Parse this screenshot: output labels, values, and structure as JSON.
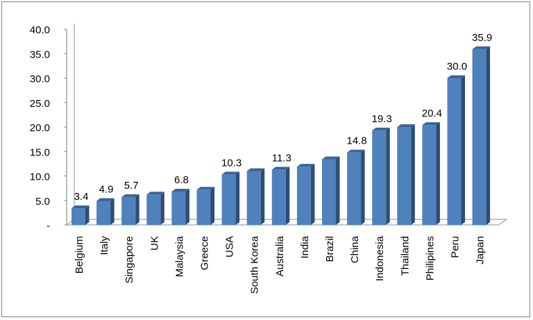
{
  "chart_data": {
    "type": "bar",
    "title": "",
    "xlabel": "",
    "ylabel": "",
    "ylim": [
      0,
      40
    ],
    "yticks": [
      "-",
      "5.0",
      "10.0",
      "15.0",
      "20.0",
      "25.0",
      "30.0",
      "35.0",
      "40.0"
    ],
    "categories": [
      "Belgium",
      "Italy",
      "Singapore",
      "UK",
      "Malaysia",
      "Greece",
      "USA",
      "South Korea",
      "Australia",
      "India",
      "Brazil",
      "China",
      "Indonesia",
      "Thailand",
      "Philipines",
      "Peru",
      "Japan"
    ],
    "values": [
      3.4,
      4.9,
      5.7,
      6.2,
      6.8,
      7.2,
      10.3,
      11.0,
      11.3,
      11.9,
      13.4,
      14.8,
      19.3,
      20.0,
      20.4,
      30.0,
      35.9
    ],
    "data_labels": [
      "3.4",
      "4.9",
      "5.7",
      "",
      "6.8",
      "",
      "10.3",
      "",
      "11.3",
      "",
      "",
      "14.8",
      "19.3",
      "",
      "20.4",
      "30.0",
      "35.9"
    ],
    "bar_color": "#4f81bd",
    "bar_side_color": "#2c4d75",
    "bar_top_color": "#3b6496",
    "grid": false,
    "legend": "none",
    "style": "3d-column"
  }
}
